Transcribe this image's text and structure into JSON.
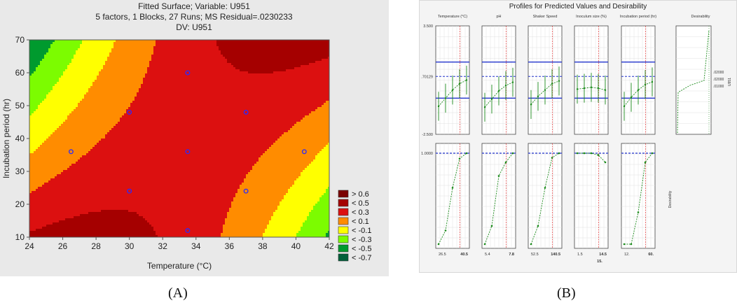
{
  "captions": {
    "left": "(A)",
    "right": "(B)"
  },
  "chart_data": [
    {
      "type": "heatmap",
      "title": "Fitted Surface; Variable: U951",
      "subtitle": "5 factors, 1 Blocks, 27 Runs; MS Residual=.0230233",
      "dv_label": "DV: U951",
      "xlabel": "Temperature (°C)",
      "ylabel": "Incubation period (hr)",
      "xlim": [
        24,
        42
      ],
      "ylim": [
        10,
        70
      ],
      "x_ticks": [
        "24",
        "26",
        "28",
        "30",
        "32",
        "34",
        "36",
        "38",
        "40",
        "42"
      ],
      "y_ticks": [
        "10",
        "20",
        "30",
        "40",
        "50",
        "60",
        "70"
      ],
      "legend_position": "right",
      "legend": [
        {
          "label": "> 0.6",
          "color": "#7a0000"
        },
        {
          "label": "< 0.5",
          "color": "#a50000"
        },
        {
          "label": "< 0.3",
          "color": "#dc1010"
        },
        {
          "label": "< 0.1",
          "color": "#ff8c00"
        },
        {
          "label": "< -0.1",
          "color": "#ffff00"
        },
        {
          "label": "< -0.3",
          "color": "#7cfc00"
        },
        {
          "label": "< -0.5",
          "color": "#009a2e"
        },
        {
          "label": "< -0.7",
          "color": "#00603a"
        }
      ],
      "design_points": [
        {
          "x": 26.5,
          "y": 36
        },
        {
          "x": 30,
          "y": 48
        },
        {
          "x": 30,
          "y": 24
        },
        {
          "x": 33.5,
          "y": 60
        },
        {
          "x": 33.5,
          "y": 36
        },
        {
          "x": 33.5,
          "y": 12
        },
        {
          "x": 37,
          "y": 48
        },
        {
          "x": 37,
          "y": 24
        },
        {
          "x": 40.5,
          "y": 36
        }
      ],
      "surface": {
        "center_x": 33.5,
        "center_y": 36,
        "x_scale": 9,
        "y_scale": 34
      }
    },
    {
      "type": "line",
      "title": "Profiles for Predicted Values and Desirability",
      "factors": [
        {
          "name": "Temperature (°C)",
          "tick_low": "26.5",
          "tick_high": "40.5",
          "mid_label": "",
          "pred": [
            -0.95,
            -0.5,
            -0.05,
            0.3,
            0.5
          ],
          "desir": [
            0.0,
            0.15,
            0.62,
            0.94,
            1.0
          ]
        },
        {
          "name": "pH",
          "tick_low": "5.4",
          "tick_high": "7.8",
          "mid_label": "",
          "pred": [
            -1.0,
            -0.55,
            -0.1,
            0.2,
            0.38
          ],
          "desir": [
            0.0,
            0.2,
            0.75,
            0.9,
            1.0
          ]
        },
        {
          "name": "Shaker Speed",
          "tick_low": "52.5",
          "tick_high": "140.5",
          "mid_label": "",
          "pred": [
            -0.85,
            -0.4,
            -0.05,
            0.3,
            0.45
          ],
          "desir": [
            0.0,
            0.2,
            0.62,
            0.95,
            1.0
          ]
        },
        {
          "name": "Inoculum size (%)",
          "tick_low": "1.5",
          "tick_high": "14.5",
          "mid_label": "15.",
          "pred": [
            0.0,
            0.05,
            0.1,
            0.05,
            -0.05
          ],
          "desir": [
            1.0,
            1.0,
            1.0,
            0.98,
            0.9
          ]
        },
        {
          "name": "Incubation period (hr)",
          "tick_low": "12.",
          "tick_high": "60.",
          "mid_label": "",
          "pred": [
            -0.95,
            -0.45,
            -0.05,
            0.25,
            0.4
          ],
          "desir": [
            0.0,
            0.0,
            0.35,
            0.9,
            1.0
          ]
        }
      ],
      "y_ticks_pred": [
        "3.500",
        ".70129",
        "-2.500"
      ],
      "y_tick_desir": "1.0000",
      "desirability_panel": {
        "title": "Desirability",
        "ticks": [
          ".02000",
          ".02000",
          ".01000"
        ],
        "side_label": "U951"
      },
      "desir_side_label": "Desirability"
    }
  ]
}
